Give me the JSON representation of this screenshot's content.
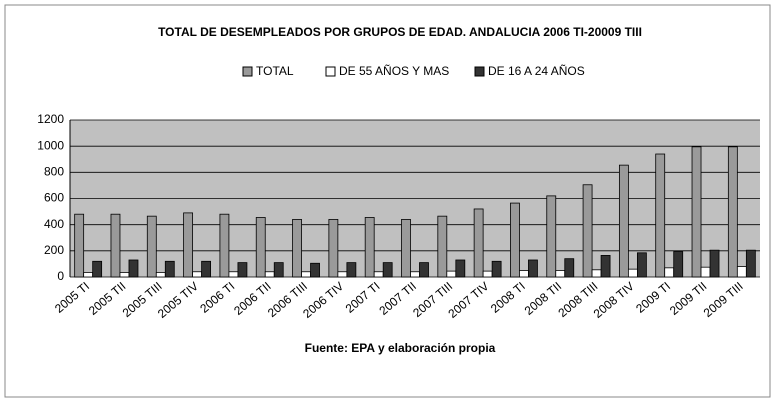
{
  "chart_data": {
    "type": "bar",
    "title": "TOTAL DE DESEMPLEADOS POR GRUPOS DE EDAD. ANDALUCIA 2006 TI-20009 TIII",
    "source": "Fuente: EPA y elaboración propia",
    "categories": [
      "2005 TI",
      "2005 TII",
      "2005 TIII",
      "2005 TIV",
      "2006 TI",
      "2006 TII",
      "2006 TIII",
      "2006 TIV",
      "2007 TI",
      "2007 TII",
      "2007 TIII",
      "2007 TIV",
      "2008 TI",
      "2008 TII",
      "2008 TIII",
      "2008 TIV",
      "2009 TI",
      "2009 TII",
      "2009 TIII"
    ],
    "series": [
      {
        "name": "TOTAL",
        "color": "#9a9a9a",
        "values": [
          480,
          480,
          465,
          490,
          480,
          455,
          440,
          440,
          455,
          440,
          465,
          520,
          565,
          620,
          705,
          855,
          940,
          995,
          995
        ]
      },
      {
        "name": "DE 55 AÑOS Y MAS",
        "color": "#ffffff",
        "values": [
          35,
          35,
          35,
          40,
          40,
          40,
          40,
          40,
          40,
          40,
          45,
          45,
          50,
          50,
          55,
          60,
          70,
          75,
          80
        ]
      },
      {
        "name": "DE 16 A 24 AÑOS",
        "color": "#333333",
        "values": [
          120,
          130,
          120,
          120,
          110,
          110,
          105,
          110,
          110,
          110,
          130,
          120,
          130,
          140,
          165,
          185,
          195,
          205,
          205
        ]
      }
    ],
    "ylim": [
      0,
      1200
    ],
    "yticks": [
      0,
      200,
      400,
      600,
      800,
      1000,
      1200
    ],
    "grid": true
  }
}
